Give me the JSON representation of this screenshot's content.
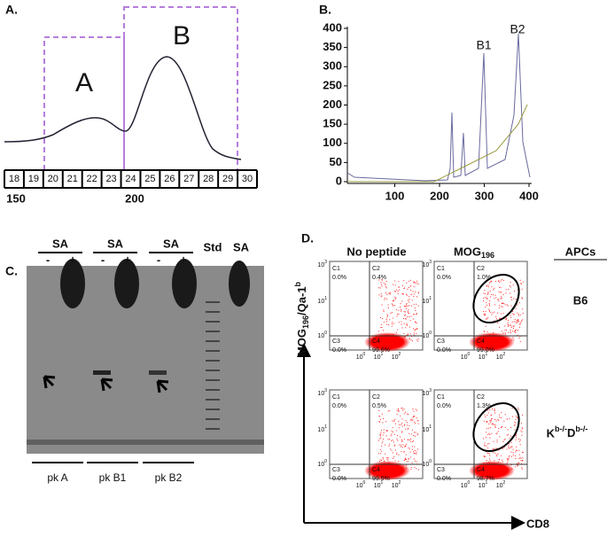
{
  "panel_a": {
    "label": "A.",
    "regions": [
      "A",
      "B"
    ],
    "fractions": [
      "18",
      "19",
      "20",
      "21",
      "22",
      "23",
      "24",
      "25",
      "26",
      "27",
      "28",
      "29",
      "30"
    ],
    "scale": [
      "150",
      "200"
    ]
  },
  "panel_b": {
    "label": "B.",
    "peaks": [
      "B1",
      "B2"
    ],
    "yticks": [
      0,
      50,
      100,
      150,
      200,
      250,
      300,
      350,
      400
    ],
    "xticks": [
      100,
      200,
      300,
      400
    ]
  },
  "panel_c": {
    "label": "C.",
    "group": "SA",
    "signs": [
      "-",
      "+"
    ],
    "peaks": [
      "pk A",
      "pk B1",
      "pk B2"
    ],
    "std": "Std",
    "sa": "SA"
  },
  "panel_d": {
    "label": "D.",
    "columns": [
      "No peptide",
      "MOG"
    ],
    "column_sub": "196",
    "apcs": "APCs",
    "rows": [
      "B6",
      "K"
    ],
    "row_sup": "b-/-",
    "row_mid": "D",
    "y_axis": [
      "MOG",
      "196",
      "/Qa-1",
      "b"
    ],
    "x_axis": "CD8",
    "tick_base": "10",
    "tick_exp": [
      "0",
      "1",
      "2",
      "3"
    ],
    "quadrants": [
      "C1",
      "C2",
      "C3",
      "C4"
    ],
    "plots": [
      [
        "0.0%",
        "0.4%",
        "0.0%",
        "99.6%"
      ],
      [
        "0.0%",
        "1.0%",
        "0.0%",
        "99.0%"
      ],
      [
        "0.0%",
        "0.5%",
        "0.0%",
        "99.5%"
      ],
      [
        "0.0%",
        "1.3%",
        "0.0%",
        "98.7%"
      ]
    ]
  }
}
